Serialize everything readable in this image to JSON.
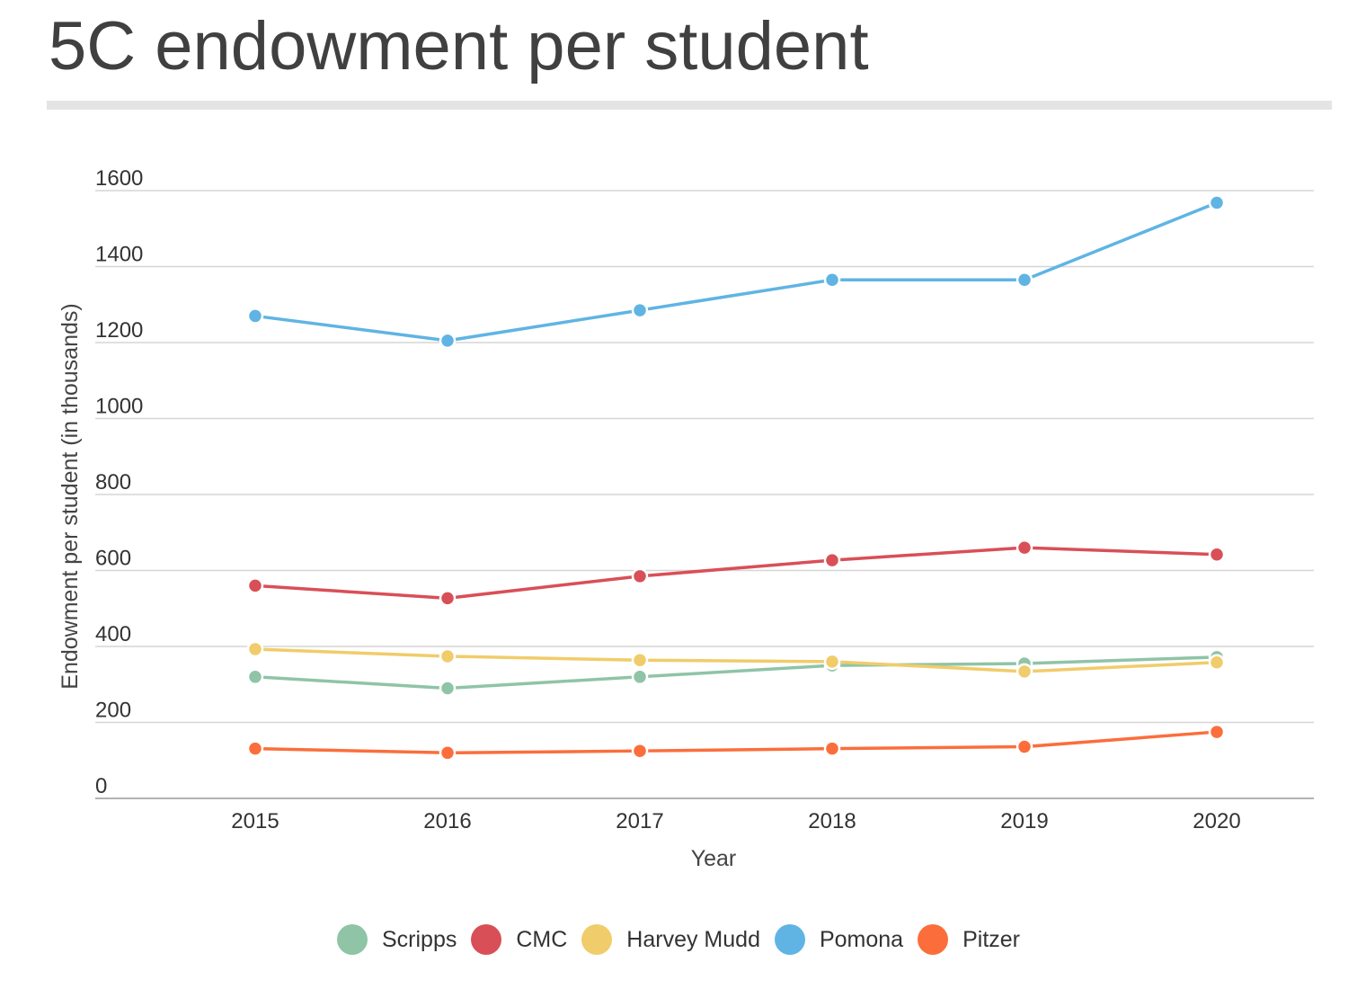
{
  "title": "5C endowment per student",
  "chart_data": {
    "type": "line",
    "title": "5C endowment per student",
    "xlabel": "Year",
    "ylabel": "Endowment per student (in thousands)",
    "x": [
      2015,
      2016,
      2017,
      2018,
      2019,
      2020
    ],
    "x_tick_labels": [
      "2015",
      "2016",
      "2017",
      "2018",
      "2019",
      "2020"
    ],
    "y_ticks": [
      0,
      200,
      400,
      600,
      800,
      1000,
      1200,
      1400,
      1600
    ],
    "y_tick_labels": [
      "0",
      "200",
      "400",
      "600",
      "800",
      "1000",
      "1200",
      "1400",
      "1600"
    ],
    "ylim": [
      0,
      1600
    ],
    "grid": true,
    "legend_position": "bottom-center",
    "series": [
      {
        "name": "Scripps",
        "color": "#8fc4a6",
        "values": [
          320,
          290,
          320,
          350,
          355,
          372
        ]
      },
      {
        "name": "CMC",
        "color": "#d94f57",
        "values": [
          560,
          527,
          585,
          627,
          660,
          642
        ]
      },
      {
        "name": "Harvey Mudd",
        "color": "#f0cc6a",
        "values": [
          393,
          374,
          364,
          360,
          334,
          358
        ]
      },
      {
        "name": "Pomona",
        "color": "#5fb4e4",
        "values": [
          1270,
          1205,
          1285,
          1365,
          1365,
          1568
        ]
      },
      {
        "name": "Pitzer",
        "color": "#fb6e3b",
        "values": [
          131,
          120,
          125,
          131,
          136,
          175
        ]
      }
    ]
  }
}
